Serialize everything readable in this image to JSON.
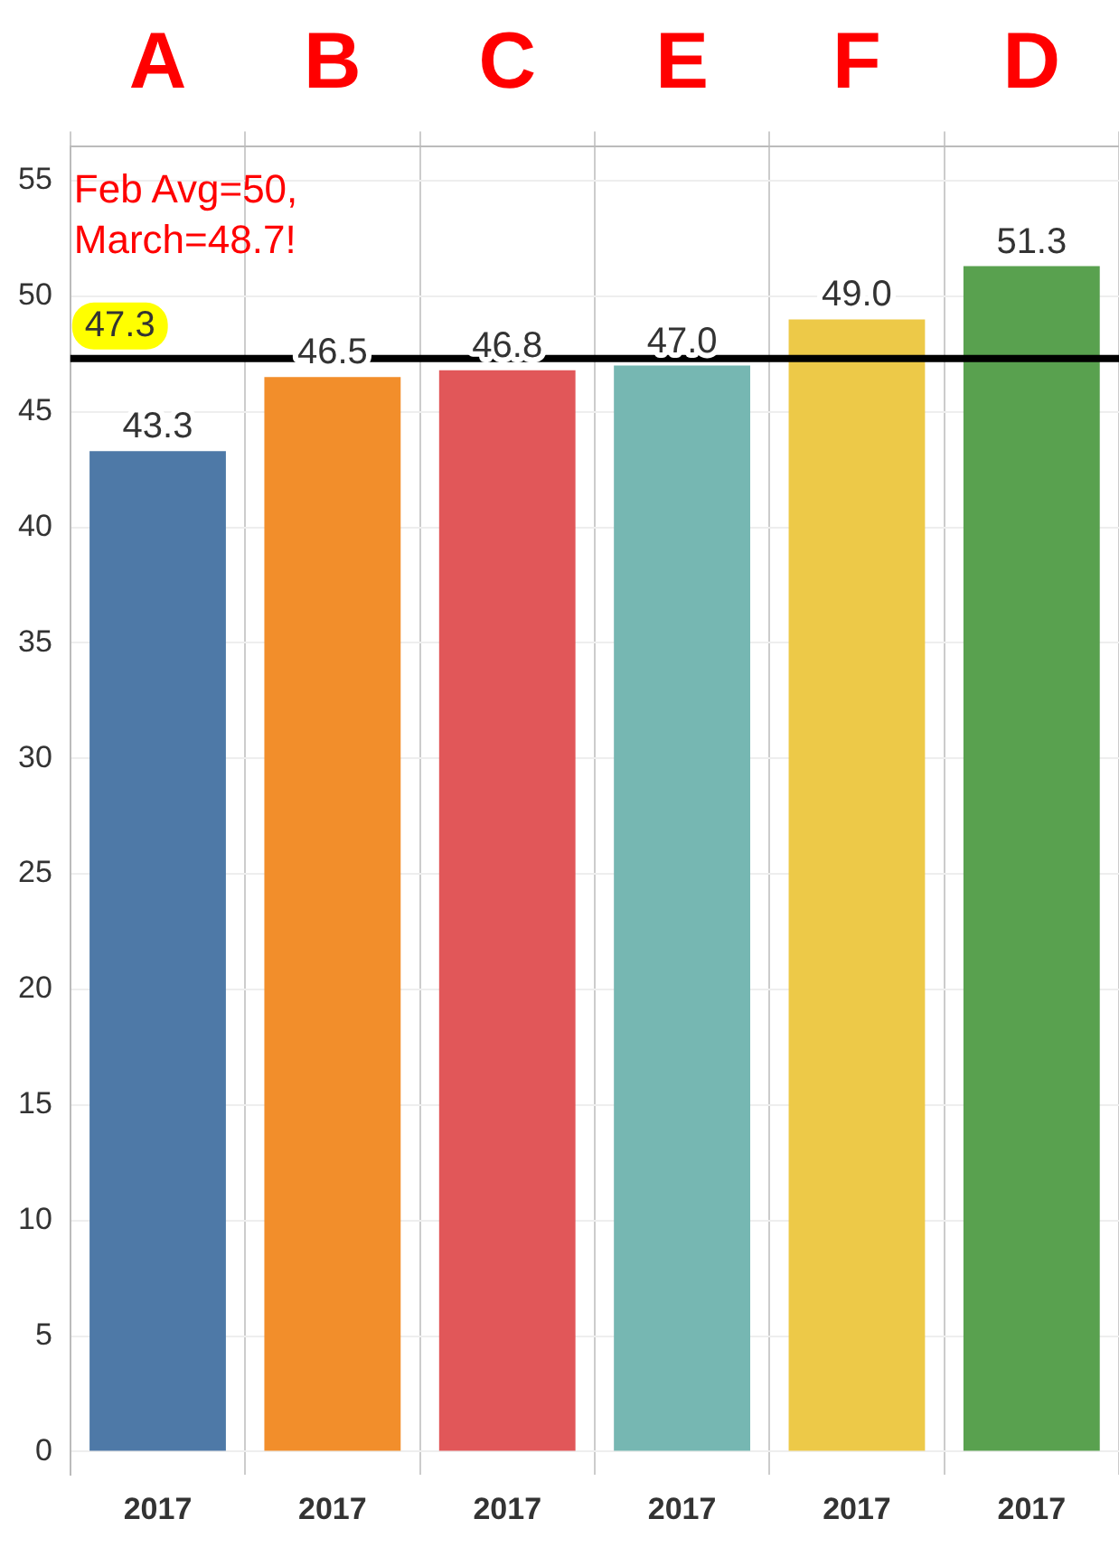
{
  "chart_data": {
    "type": "bar",
    "categories": [
      "A",
      "B",
      "C",
      "E",
      "F",
      "D"
    ],
    "values": [
      43.3,
      46.5,
      46.8,
      47.0,
      49.0,
      51.3
    ],
    "value_labels": [
      "43.3",
      "46.5",
      "46.8",
      "47.0",
      "49.0",
      "51.3"
    ],
    "colors": [
      "#4e79a7",
      "#f28e2b",
      "#e15759",
      "#76b7b2",
      "#edc948",
      "#59a14f"
    ],
    "ylim": [
      -1,
      56.5
    ],
    "yticks": [
      0,
      5,
      10,
      15,
      20,
      25,
      30,
      35,
      40,
      45,
      50,
      55
    ],
    "grid": true,
    "ref_lines": [
      {
        "axis": "y",
        "value": 47.3,
        "label": "47.3",
        "color": "#000000"
      }
    ],
    "legend": false,
    "annotations": [
      "Feb Avg=50, March=48.7!",
      "2017",
      "2017",
      "2017",
      "2017",
      "2017",
      "2017"
    ]
  }
}
